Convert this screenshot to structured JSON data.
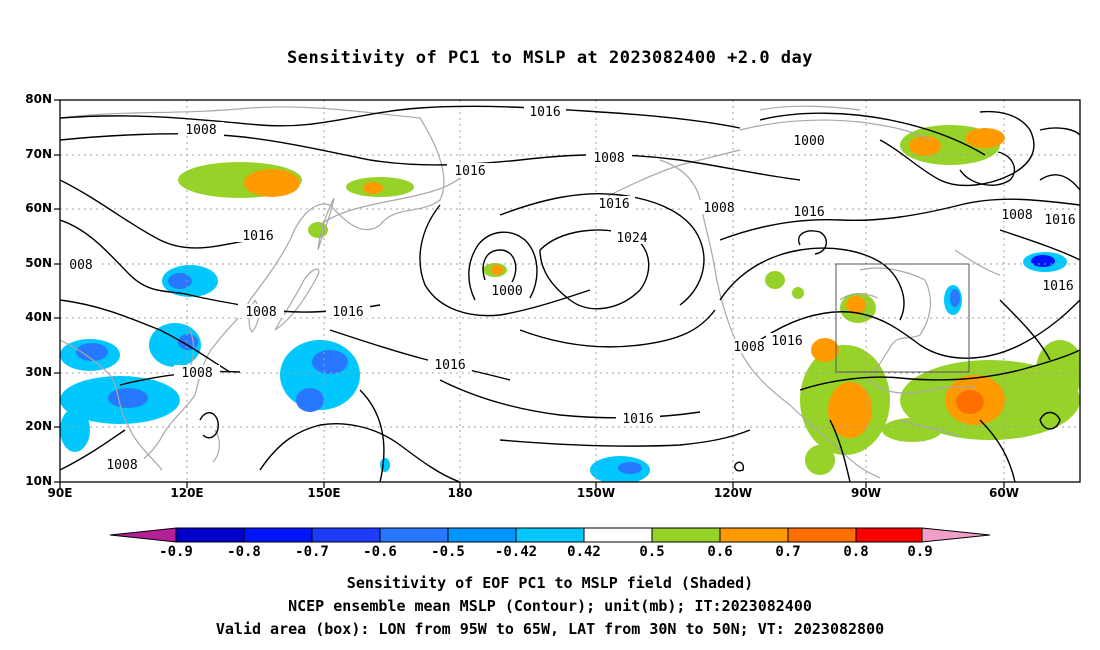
{
  "title": "Sensitivity of PC1 to MSLP at 2023082400 +2.0 day",
  "y_axis_labels": [
    "80N",
    "70N",
    "60N",
    "50N",
    "40N",
    "30N",
    "20N",
    "10N"
  ],
  "x_axis_labels": [
    "90E",
    "120E",
    "150E",
    "180",
    "150W",
    "120W",
    "90W",
    "60W"
  ],
  "contour_labels": [
    "1016",
    "1008",
    "1000",
    "1016",
    "1008",
    "1016",
    "1024",
    "1008",
    "1016",
    "1016",
    "1000",
    "1008",
    "1016",
    "1008",
    "1016",
    "1016",
    "1008",
    "1016",
    "1008",
    "1016",
    "008",
    "1016",
    "1008"
  ],
  "colorbar": {
    "colors": [
      "#b41e96",
      "#0000c8",
      "#0014ff",
      "#1e3cff",
      "#2878ff",
      "#0096ff",
      "#00c8ff",
      "#ffffff",
      "#96d228",
      "#ff9b00",
      "#ff6e00",
      "#ff4600",
      "#ff0000",
      "#f0a0c8"
    ],
    "tick_labels": [
      "-0.9",
      "-0.8",
      "-0.7",
      "-0.6",
      "-0.5",
      "-0.42",
      "0.42",
      "0.5",
      "0.6",
      "0.7",
      "0.8",
      "0.9"
    ]
  },
  "captions": {
    "line1": "Sensitivity of EOF PC1 to MSLP field (Shaded)",
    "line2": "NCEP ensemble mean MSLP (Contour); unit(mb); IT:2023082400",
    "line3": "Valid area (box): LON from 95W to 65W, LAT from 30N to 50N; VT: 2023082800"
  }
}
